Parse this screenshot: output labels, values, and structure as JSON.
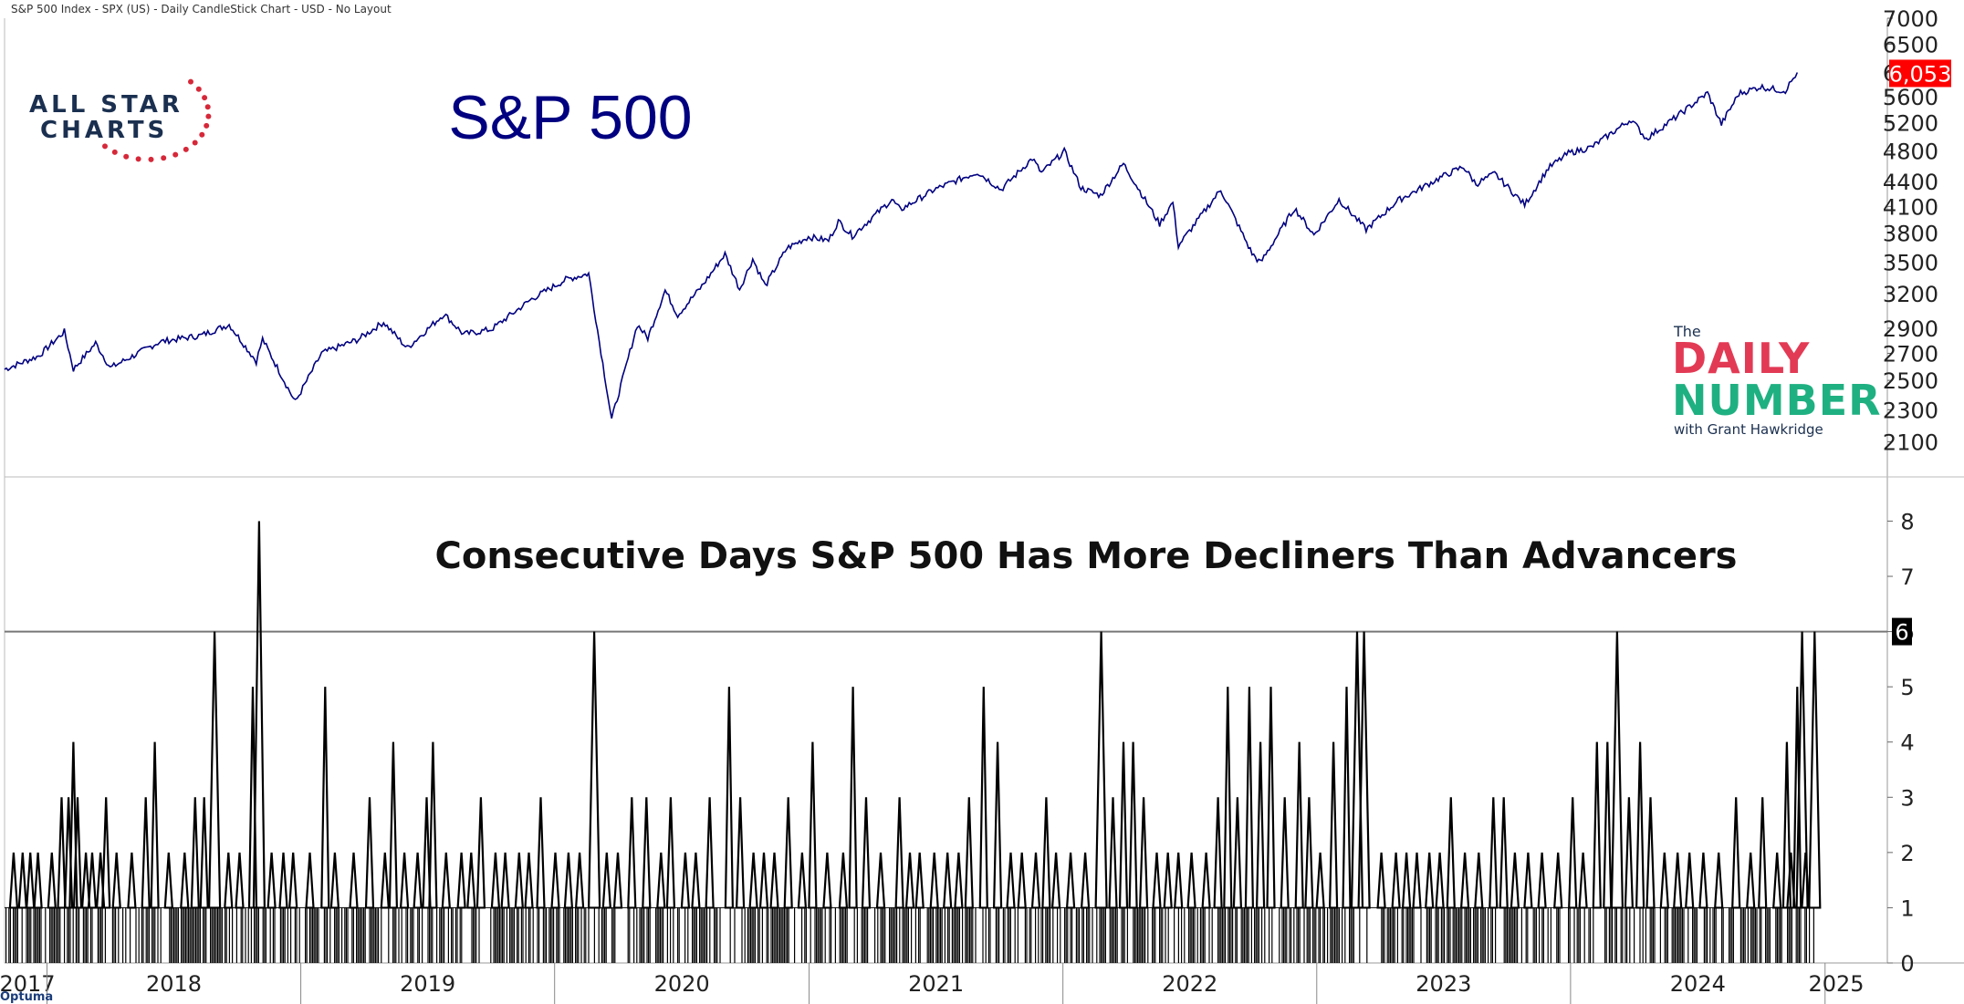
{
  "header": "S&P 500 Index - SPX (US) - Daily CandleStick Chart - USD - No Layout",
  "brand": "Optuma",
  "logo": {
    "line1": "ALL STAR",
    "line2": "CHARTS"
  },
  "daily_number": {
    "the": "The",
    "daily": "DAILY",
    "number": "NUMBER",
    "with": "with Grant Hawkridge"
  },
  "colors": {
    "price": "#000080",
    "bars": "#000000",
    "last_price_tag": "#ff0000",
    "last_value_tag": "#000000",
    "title_price": "#000080"
  },
  "chart_data": [
    {
      "type": "line",
      "title": "S&P 500",
      "y_ticks": [
        2100,
        2300,
        2500,
        2700,
        2900,
        3200,
        3500,
        3800,
        4100,
        4400,
        4800,
        5200,
        5600,
        6000,
        6500,
        7000
      ],
      "y_tick_labels": [
        "2100",
        "2300",
        "2500",
        "2700",
        "2900",
        "3200",
        "3500",
        "3800",
        "4100",
        "4400",
        "4800",
        "5200",
        "5600",
        "6000",
        "6500",
        "7000"
      ],
      "scale": "log",
      "ylim": [
        1900,
        7000
      ],
      "last_value_label": "6,053",
      "series": [
        {
          "x": [
            "2017-11-01",
            "2017-12-20",
            "2018-01-26",
            "2018-02-08",
            "2018-03-12",
            "2018-04-02",
            "2018-06-12",
            "2018-08-10",
            "2018-09-20",
            "2018-10-29",
            "2018-11-07",
            "2018-12-24",
            "2019-01-31",
            "2019-03-25",
            "2019-04-30",
            "2019-06-03",
            "2019-07-26",
            "2019-08-23",
            "2019-10-02",
            "2019-11-29",
            "2020-01-17",
            "2020-02-19",
            "2020-03-23",
            "2020-04-29",
            "2020-05-14",
            "2020-06-08",
            "2020-06-26",
            "2020-07-31",
            "2020-09-02",
            "2020-09-23",
            "2020-10-12",
            "2020-10-30",
            "2020-11-30",
            "2020-12-31",
            "2021-01-29",
            "2021-02-12",
            "2021-03-04",
            "2021-04-30",
            "2021-05-12",
            "2021-06-30",
            "2021-08-31",
            "2021-10-04",
            "2021-11-18",
            "2021-12-01",
            "2022-01-03",
            "2022-01-27",
            "2022-02-24",
            "2022-03-29",
            "2022-05-20",
            "2022-06-08",
            "2022-06-16",
            "2022-08-16",
            "2022-09-30",
            "2022-10-12",
            "2022-11-30",
            "2022-12-28",
            "2023-02-02",
            "2023-03-13",
            "2023-04-28",
            "2023-06-30",
            "2023-07-31",
            "2023-08-18",
            "2023-09-14",
            "2023-10-27",
            "2023-11-30",
            "2023-12-29",
            "2024-01-31",
            "2024-03-28",
            "2024-04-19",
            "2024-05-31",
            "2024-07-16",
            "2024-08-05",
            "2024-08-30",
            "2024-09-30",
            "2024-10-31",
            "2024-11-05",
            "2024-11-22"
          ],
          "y": [
            2580,
            2680,
            2872,
            2580,
            2780,
            2590,
            2790,
            2840,
            2930,
            2640,
            2810,
            2351,
            2700,
            2810,
            2950,
            2740,
            3020,
            2850,
            2890,
            3150,
            3330,
            3386,
            2237,
            2930,
            2820,
            3230,
            3010,
            3270,
            3580,
            3240,
            3530,
            3270,
            3640,
            3760,
            3720,
            3930,
            3770,
            4180,
            4060,
            4300,
            4520,
            4300,
            4700,
            4510,
            4796,
            4320,
            4230,
            4630,
            3900,
            4150,
            3666,
            4300,
            3585,
            3492,
            4080,
            3780,
            4180,
            3840,
            4170,
            4460,
            4590,
            4370,
            4500,
            4120,
            4570,
            4770,
            4850,
            5250,
            4970,
            5280,
            5660,
            5180,
            5650,
            5760,
            5700,
            5700,
            6000
          ]
        }
      ]
    },
    {
      "type": "bar",
      "title": "Consecutive Days S&P 500 Has More Decliners Than Advancers",
      "y_ticks": [
        0,
        1,
        2,
        3,
        4,
        5,
        6,
        7,
        8
      ],
      "ylim": [
        0,
        8.8
      ],
      "reference_line": 6,
      "last_value_label": "6",
      "spikes": [
        {
          "x": "2017-11-14",
          "y": 2
        },
        {
          "x": "2017-11-27",
          "y": 2
        },
        {
          "x": "2017-12-08",
          "y": 2
        },
        {
          "x": "2017-12-19",
          "y": 2
        },
        {
          "x": "2018-01-08",
          "y": 2
        },
        {
          "x": "2018-01-22",
          "y": 3
        },
        {
          "x": "2018-02-01",
          "y": 3
        },
        {
          "x": "2018-02-08",
          "y": 4
        },
        {
          "x": "2018-02-14",
          "y": 3
        },
        {
          "x": "2018-02-26",
          "y": 2
        },
        {
          "x": "2018-03-07",
          "y": 2
        },
        {
          "x": "2018-03-19",
          "y": 2
        },
        {
          "x": "2018-03-27",
          "y": 3
        },
        {
          "x": "2018-04-11",
          "y": 2
        },
        {
          "x": "2018-05-03",
          "y": 2
        },
        {
          "x": "2018-05-23",
          "y": 3
        },
        {
          "x": "2018-06-05",
          "y": 4
        },
        {
          "x": "2018-06-25",
          "y": 2
        },
        {
          "x": "2018-07-18",
          "y": 2
        },
        {
          "x": "2018-08-02",
          "y": 3
        },
        {
          "x": "2018-08-15",
          "y": 3
        },
        {
          "x": "2018-08-30",
          "y": 6
        },
        {
          "x": "2018-09-19",
          "y": 2
        },
        {
          "x": "2018-10-05",
          "y": 2
        },
        {
          "x": "2018-10-24",
          "y": 5
        },
        {
          "x": "2018-11-02",
          "y": 8
        },
        {
          "x": "2018-11-20",
          "y": 2
        },
        {
          "x": "2018-12-07",
          "y": 2
        },
        {
          "x": "2018-12-21",
          "y": 2
        },
        {
          "x": "2019-01-14",
          "y": 2
        },
        {
          "x": "2019-02-05",
          "y": 5
        },
        {
          "x": "2019-02-19",
          "y": 2
        },
        {
          "x": "2019-03-18",
          "y": 2
        },
        {
          "x": "2019-04-10",
          "y": 3
        },
        {
          "x": "2019-05-02",
          "y": 2
        },
        {
          "x": "2019-05-14",
          "y": 4
        },
        {
          "x": "2019-05-30",
          "y": 2
        },
        {
          "x": "2019-06-18",
          "y": 2
        },
        {
          "x": "2019-07-01",
          "y": 3
        },
        {
          "x": "2019-07-10",
          "y": 4
        },
        {
          "x": "2019-07-29",
          "y": 2
        },
        {
          "x": "2019-08-20",
          "y": 2
        },
        {
          "x": "2019-09-03",
          "y": 2
        },
        {
          "x": "2019-09-17",
          "y": 3
        },
        {
          "x": "2019-10-08",
          "y": 2
        },
        {
          "x": "2019-10-22",
          "y": 2
        },
        {
          "x": "2019-11-11",
          "y": 2
        },
        {
          "x": "2019-11-25",
          "y": 2
        },
        {
          "x": "2019-12-12",
          "y": 3
        },
        {
          "x": "2020-01-02",
          "y": 2
        },
        {
          "x": "2020-01-21",
          "y": 2
        },
        {
          "x": "2020-02-06",
          "y": 2
        },
        {
          "x": "2020-02-27",
          "y": 6
        },
        {
          "x": "2020-03-16",
          "y": 2
        },
        {
          "x": "2020-04-01",
          "y": 2
        },
        {
          "x": "2020-04-21",
          "y": 3
        },
        {
          "x": "2020-05-12",
          "y": 3
        },
        {
          "x": "2020-06-02",
          "y": 2
        },
        {
          "x": "2020-06-16",
          "y": 3
        },
        {
          "x": "2020-07-07",
          "y": 2
        },
        {
          "x": "2020-07-22",
          "y": 2
        },
        {
          "x": "2020-08-11",
          "y": 3
        },
        {
          "x": "2020-09-08",
          "y": 5
        },
        {
          "x": "2020-09-24",
          "y": 3
        },
        {
          "x": "2020-10-13",
          "y": 2
        },
        {
          "x": "2020-10-28",
          "y": 2
        },
        {
          "x": "2020-11-12",
          "y": 2
        },
        {
          "x": "2020-12-02",
          "y": 3
        },
        {
          "x": "2020-12-22",
          "y": 2
        },
        {
          "x": "2021-01-06",
          "y": 4
        },
        {
          "x": "2021-01-27",
          "y": 2
        },
        {
          "x": "2021-02-19",
          "y": 2
        },
        {
          "x": "2021-03-05",
          "y": 5
        },
        {
          "x": "2021-03-24",
          "y": 3
        },
        {
          "x": "2021-04-14",
          "y": 2
        },
        {
          "x": "2021-05-11",
          "y": 3
        },
        {
          "x": "2021-05-26",
          "y": 2
        },
        {
          "x": "2021-06-09",
          "y": 2
        },
        {
          "x": "2021-06-30",
          "y": 2
        },
        {
          "x": "2021-07-19",
          "y": 2
        },
        {
          "x": "2021-08-04",
          "y": 2
        },
        {
          "x": "2021-08-19",
          "y": 3
        },
        {
          "x": "2021-09-09",
          "y": 5
        },
        {
          "x": "2021-09-29",
          "y": 4
        },
        {
          "x": "2021-10-18",
          "y": 2
        },
        {
          "x": "2021-11-03",
          "y": 2
        },
        {
          "x": "2021-11-23",
          "y": 2
        },
        {
          "x": "2021-12-08",
          "y": 3
        },
        {
          "x": "2021-12-22",
          "y": 2
        },
        {
          "x": "2022-01-12",
          "y": 2
        },
        {
          "x": "2022-02-02",
          "y": 2
        },
        {
          "x": "2022-02-25",
          "y": 6
        },
        {
          "x": "2022-03-14",
          "y": 3
        },
        {
          "x": "2022-03-29",
          "y": 4
        },
        {
          "x": "2022-04-12",
          "y": 4
        },
        {
          "x": "2022-04-27",
          "y": 3
        },
        {
          "x": "2022-05-16",
          "y": 2
        },
        {
          "x": "2022-06-01",
          "y": 2
        },
        {
          "x": "2022-06-16",
          "y": 2
        },
        {
          "x": "2022-07-05",
          "y": 2
        },
        {
          "x": "2022-07-26",
          "y": 2
        },
        {
          "x": "2022-08-12",
          "y": 3
        },
        {
          "x": "2022-08-26",
          "y": 5
        },
        {
          "x": "2022-09-09",
          "y": 3
        },
        {
          "x": "2022-09-26",
          "y": 5
        },
        {
          "x": "2022-10-12",
          "y": 4
        },
        {
          "x": "2022-10-27",
          "y": 5
        },
        {
          "x": "2022-11-16",
          "y": 3
        },
        {
          "x": "2022-12-07",
          "y": 4
        },
        {
          "x": "2022-12-21",
          "y": 3
        },
        {
          "x": "2023-01-06",
          "y": 2
        },
        {
          "x": "2023-01-25",
          "y": 4
        },
        {
          "x": "2023-02-13",
          "y": 5
        },
        {
          "x": "2023-02-28",
          "y": 6
        },
        {
          "x": "2023-03-10",
          "y": 6
        },
        {
          "x": "2023-04-04",
          "y": 2
        },
        {
          "x": "2023-04-25",
          "y": 2
        },
        {
          "x": "2023-05-10",
          "y": 2
        },
        {
          "x": "2023-05-25",
          "y": 2
        },
        {
          "x": "2023-06-12",
          "y": 2
        },
        {
          "x": "2023-06-27",
          "y": 2
        },
        {
          "x": "2023-07-13",
          "y": 3
        },
        {
          "x": "2023-08-02",
          "y": 2
        },
        {
          "x": "2023-08-22",
          "y": 2
        },
        {
          "x": "2023-09-12",
          "y": 3
        },
        {
          "x": "2023-09-27",
          "y": 3
        },
        {
          "x": "2023-10-13",
          "y": 2
        },
        {
          "x": "2023-11-01",
          "y": 2
        },
        {
          "x": "2023-11-21",
          "y": 2
        },
        {
          "x": "2023-12-14",
          "y": 2
        },
        {
          "x": "2024-01-04",
          "y": 3
        },
        {
          "x": "2024-01-19",
          "y": 2
        },
        {
          "x": "2024-02-08",
          "y": 4
        },
        {
          "x": "2024-02-23",
          "y": 4
        },
        {
          "x": "2024-03-08",
          "y": 6
        },
        {
          "x": "2024-03-25",
          "y": 3
        },
        {
          "x": "2024-04-10",
          "y": 4
        },
        {
          "x": "2024-04-25",
          "y": 3
        },
        {
          "x": "2024-05-15",
          "y": 2
        },
        {
          "x": "2024-06-03",
          "y": 2
        },
        {
          "x": "2024-06-20",
          "y": 2
        },
        {
          "x": "2024-07-10",
          "y": 2
        },
        {
          "x": "2024-08-01",
          "y": 2
        },
        {
          "x": "2024-08-26",
          "y": 3
        },
        {
          "x": "2024-09-16",
          "y": 2
        },
        {
          "x": "2024-10-03",
          "y": 3
        },
        {
          "x": "2024-10-24",
          "y": 2
        },
        {
          "x": "2024-11-07",
          "y": 4
        },
        {
          "x": "2024-11-13",
          "y": 2
        },
        {
          "x": "2024-11-22",
          "y": 5
        },
        {
          "x": "2024-11-29",
          "y": 6
        },
        {
          "x": "2024-12-04",
          "y": 2
        },
        {
          "x": "2024-12-17",
          "y": 6
        }
      ]
    }
  ],
  "x_axis": {
    "labels": [
      "2017",
      "2018",
      "2019",
      "2020",
      "2021",
      "2022",
      "2023",
      "2024",
      "2025"
    ],
    "start": "2017-11-01",
    "end": "2025-03-25"
  }
}
